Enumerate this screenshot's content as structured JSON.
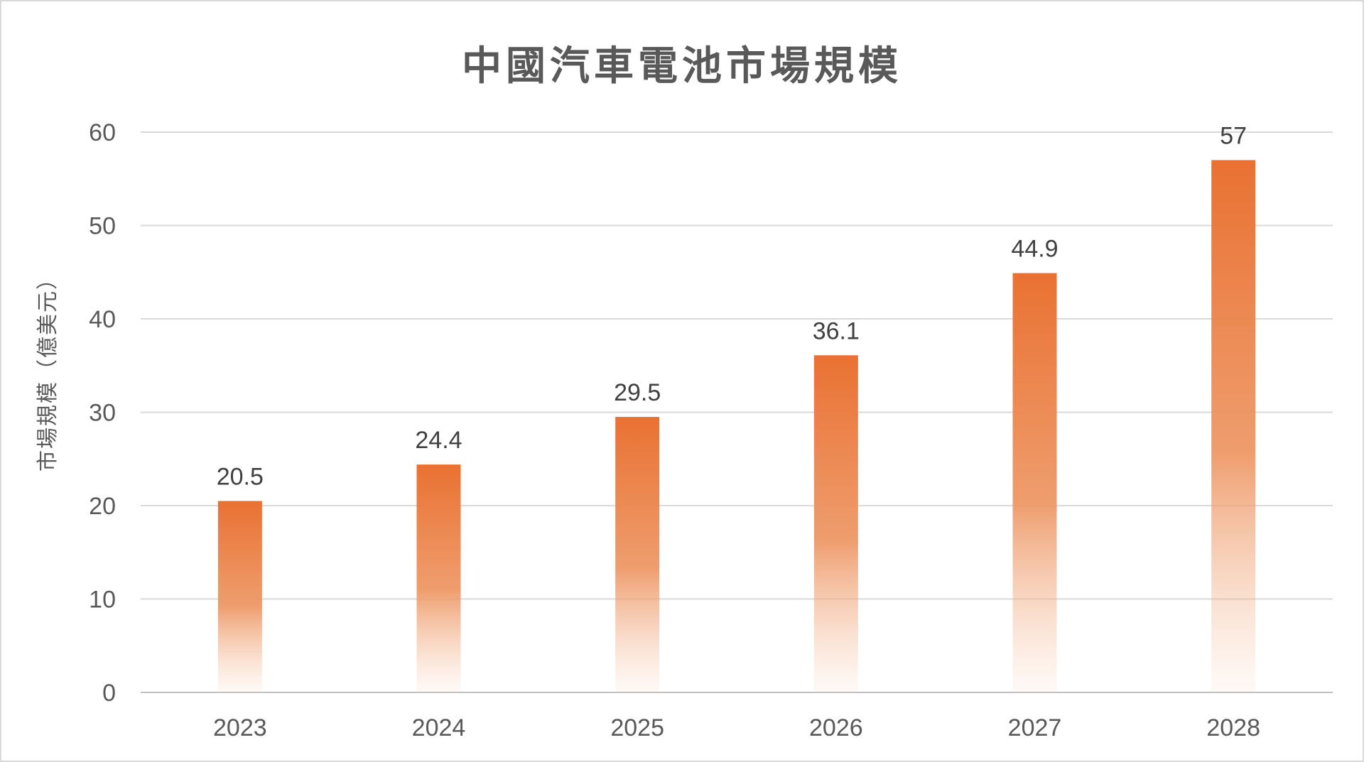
{
  "chart_data": {
    "type": "bar",
    "title": "中國汽車電池市場規模",
    "xlabel": "",
    "ylabel": "市場規模（億美元）",
    "categories": [
      "2023",
      "2024",
      "2025",
      "2026",
      "2027",
      "2028"
    ],
    "values": [
      20.5,
      24.4,
      29.5,
      36.1,
      44.9,
      57
    ],
    "data_labels": [
      "20.5",
      "24.4",
      "29.5",
      "36.1",
      "44.9",
      "57"
    ],
    "ylim": [
      0,
      60
    ],
    "yticks": [
      0,
      10,
      20,
      30,
      40,
      50,
      60
    ],
    "ytick_labels": [
      "0",
      "10",
      "20",
      "30",
      "40",
      "50",
      "60"
    ],
    "grid": true,
    "legend": "none",
    "bar_fill": "gradient orange to transparent (top to bottom)",
    "colors": {
      "bar_top": "#e97132",
      "bar_bottom": "#ffffff",
      "gridline": "#d9d9d9",
      "text": "#595959"
    }
  }
}
